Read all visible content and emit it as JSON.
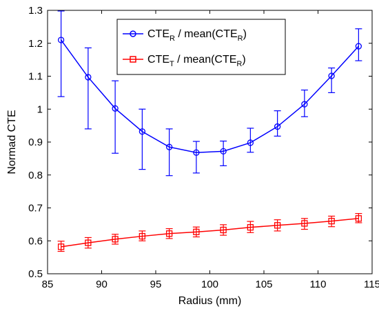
{
  "chart_data": {
    "type": "line",
    "xlabel": "Radius (mm)",
    "ylabel": "Normad CTE",
    "xlim": [
      85,
      115
    ],
    "ylim": [
      0.5,
      1.3
    ],
    "xticks": [
      85,
      90,
      95,
      100,
      105,
      110,
      115
    ],
    "yticks": [
      0.5,
      0.6,
      0.7,
      0.8,
      0.9,
      1,
      1.1,
      1.2,
      1.3
    ],
    "grid": false,
    "legend_position": "top-center",
    "x": [
      86.25,
      88.75,
      91.25,
      93.75,
      96.25,
      98.75,
      101.25,
      103.75,
      106.25,
      108.75,
      111.25,
      113.75
    ],
    "series": [
      {
        "legend": {
          "main1": "CTE",
          "sub1": "R",
          "main2": " / mean(CTE",
          "sub2": "R",
          "main3": ")"
        },
        "color": "#0000ff",
        "marker": "circle",
        "values": [
          1.21,
          1.097,
          1.002,
          0.932,
          0.885,
          0.868,
          0.872,
          0.898,
          0.947,
          1.015,
          1.101,
          1.191
        ],
        "err_low": [
          1.038,
          0.94,
          0.866,
          0.817,
          0.798,
          0.806,
          0.828,
          0.869,
          0.918,
          0.977,
          1.05,
          1.147
        ],
        "err_high": [
          1.298,
          1.186,
          1.086,
          1.0,
          0.94,
          0.902,
          0.903,
          0.942,
          0.995,
          1.058,
          1.125,
          1.244
        ]
      },
      {
        "legend": {
          "main1": "CTE",
          "sub1": "T",
          "main2": " / mean(CTE",
          "sub2": "R",
          "main3": ")"
        },
        "color": "#ff0000",
        "marker": "square",
        "values": [
          0.582,
          0.594,
          0.605,
          0.614,
          0.622,
          0.627,
          0.633,
          0.641,
          0.647,
          0.653,
          0.66,
          0.668
        ],
        "err_low": [
          0.568,
          0.578,
          0.59,
          0.6,
          0.607,
          0.612,
          0.617,
          0.625,
          0.63,
          0.635,
          0.643,
          0.655
        ],
        "err_high": [
          0.599,
          0.61,
          0.62,
          0.63,
          0.637,
          0.642,
          0.649,
          0.659,
          0.664,
          0.668,
          0.675,
          0.683
        ]
      }
    ]
  }
}
